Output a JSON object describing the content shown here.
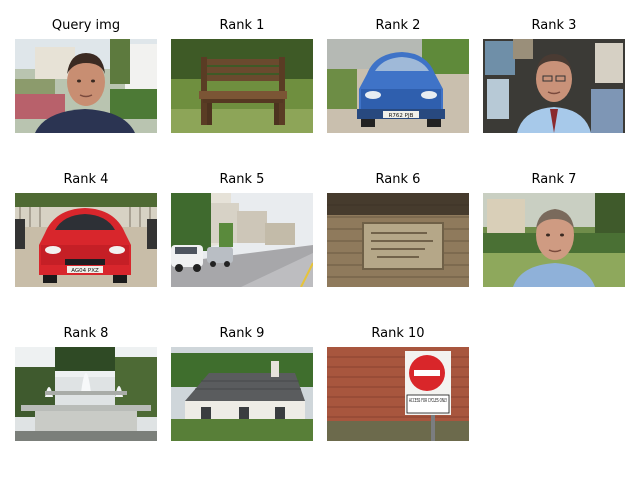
{
  "grid": {
    "cells": [
      {
        "title": "Query img",
        "subject": "person-outdoors"
      },
      {
        "title": "Rank 1",
        "subject": "wooden-bench"
      },
      {
        "title": "Rank 2",
        "subject": "blue-car",
        "plate": "R762 PJB"
      },
      {
        "title": "Rank 3",
        "subject": "person-office"
      },
      {
        "title": "Rank 4",
        "subject": "red-car",
        "plate": "AG04 PXZ"
      },
      {
        "title": "Rank 5",
        "subject": "street"
      },
      {
        "title": "Rank 6",
        "subject": "stone-plaque"
      },
      {
        "title": "Rank 7",
        "subject": "person-garden"
      },
      {
        "title": "Rank 8",
        "subject": "fountain"
      },
      {
        "title": "Rank 9",
        "subject": "house"
      },
      {
        "title": "Rank 10",
        "subject": "no-entry-sign",
        "sign_text": "ACCESS FOR CYCLES ONLY"
      }
    ]
  }
}
